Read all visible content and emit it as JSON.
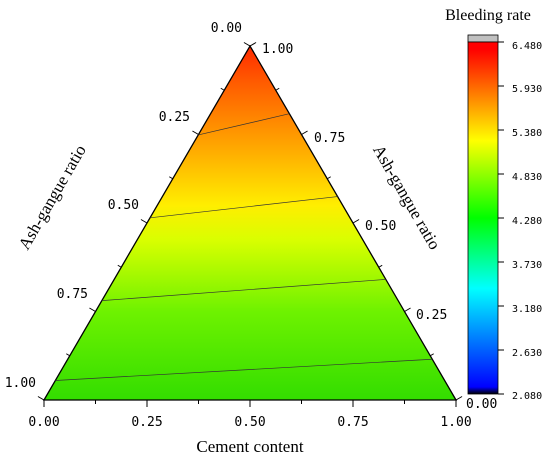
{
  "chart_data": {
    "type": "ternary-contour",
    "title": "",
    "axes": {
      "bottom": {
        "label": "Cement content",
        "ticks": [
          "0.00",
          "0.25",
          "0.50",
          "0.75",
          "1.00"
        ]
      },
      "left": {
        "label": "Ash-gangue ratio",
        "ticks": [
          "0.00",
          "0.25",
          "0.50",
          "0.75",
          "1.00"
        ]
      },
      "right": {
        "label": "Ash-gangue ratio",
        "ticks": [
          "0.00",
          "0.25",
          "0.50",
          "0.75",
          "1.00"
        ]
      }
    },
    "colorbar": {
      "title": "Bleeding rate",
      "min": 2.08,
      "max": 6.48,
      "ticks": [
        "6.480",
        "5.930",
        "5.380",
        "4.830",
        "4.280",
        "3.730",
        "3.180",
        "2.630",
        "2.080"
      ],
      "colors": [
        "#000000",
        "#0000ff",
        "#00ffff",
        "#00ff00",
        "#ffff00",
        "#ff0000",
        "#c0c0c0"
      ]
    },
    "contour_levels_visible": [
      4.3,
      4.83,
      5.38,
      5.93
    ],
    "value_range_in_triangle": [
      4.1,
      6.45
    ]
  }
}
